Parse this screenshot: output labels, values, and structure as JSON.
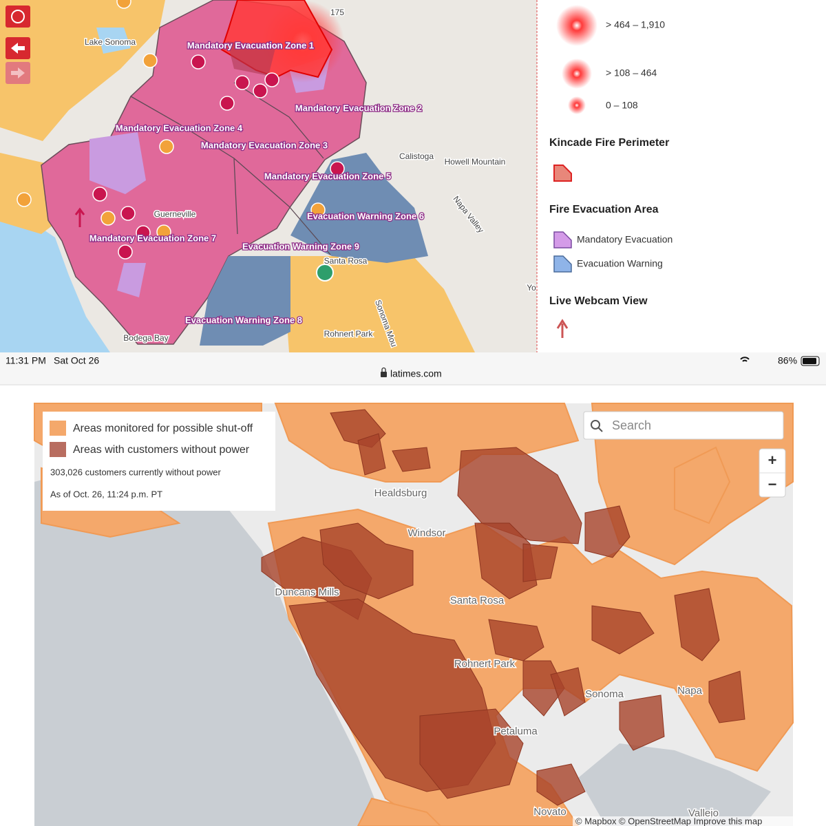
{
  "top_map": {
    "zones": [
      "Mandatory Evacuation Zone 1",
      "Mandatory Evacuation Zone 2",
      "Mandatory Evacuation Zone 3",
      "Mandatory Evacuation Zone 4",
      "Mandatory Evacuation Zone 5",
      "Evacuation Warning Zone 6",
      "Mandatory Evacuation Zone 7",
      "Evacuation Warning Zone 8",
      "Evacuation Warning Zone 9"
    ],
    "places": [
      "Lake Sonoma",
      "Calistoga",
      "Howell Mountain",
      "Napa Valley",
      "Guerneville",
      "Santa Rosa",
      "Sonoma Mou",
      "Rohnert Park",
      "Bodega Bay",
      "175",
      "Yo"
    ]
  },
  "top_legend": {
    "intensity": [
      "> 464 – 1,910",
      "> 108 – 464",
      "0 – 108"
    ],
    "perimeter_title": "Kincade Fire Perimeter",
    "evac_title": "Fire Evacuation Area",
    "evac_items": [
      "Mandatory Evacuation",
      "Evacuation Warning"
    ],
    "webcam_title": "Live Webcam View"
  },
  "status_bar": {
    "time": "11:31 PM",
    "date": "Sat Oct 26",
    "url": "latimes.com",
    "battery": "86%"
  },
  "bottom_map": {
    "legend": [
      "Areas monitored for possible shut-off",
      "Areas with customers without power"
    ],
    "customers": "303,026 customers currently without power",
    "as_of": "As of Oct. 26, 11:24 p.m. PT",
    "search": "Search",
    "zoom_in": "+",
    "zoom_out": "−",
    "places": [
      "Healdsburg",
      "Windsor",
      "Duncans Mills",
      "Santa Rosa",
      "Rohnert Park",
      "Sonoma",
      "Napa",
      "Petaluma",
      "Novato",
      "Vallejo"
    ],
    "attribution": "© Mapbox © OpenStreetMap Improve this map"
  }
}
